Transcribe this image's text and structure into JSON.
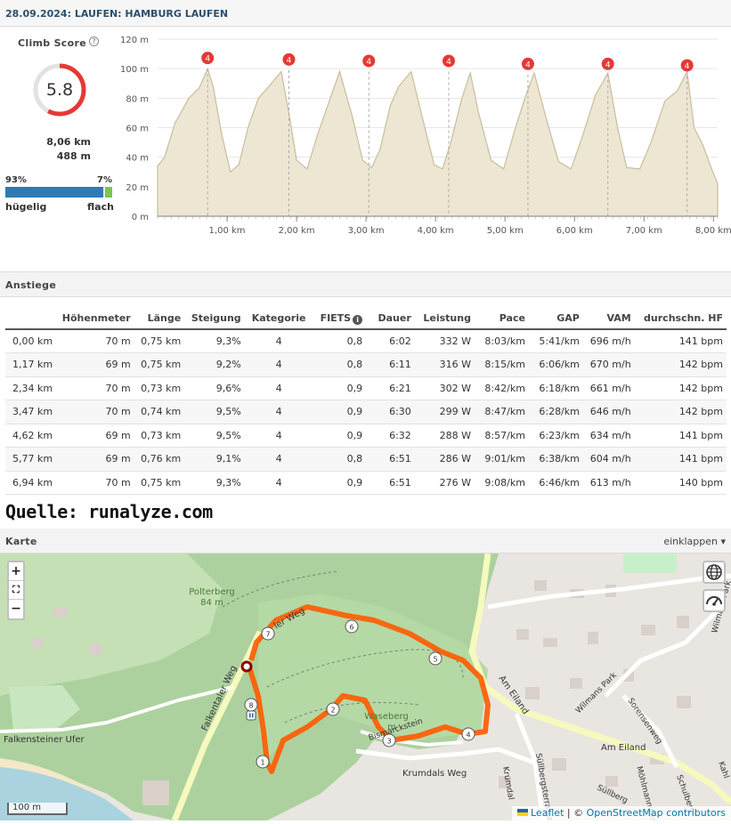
{
  "header": {
    "title": "28.09.2024: LAUFEN: HAMBURG LAUFEN"
  },
  "climb_score": {
    "label": "Climb Score",
    "help_icon": "?",
    "value": "5.8",
    "distance": "8,06 km",
    "elevation": "488 m",
    "hilly_pct": "93%",
    "flat_pct": "7%",
    "hilly_fraction": 0.93,
    "hilly_label": "hügelig",
    "flat_label": "flach",
    "colors": {
      "ring": "#e53935",
      "hilly": "#2d7bb5",
      "flat": "#7ec44f"
    }
  },
  "chart_data": {
    "type": "area",
    "title": "",
    "xlabel": "",
    "ylabel": "",
    "x_ticks": [
      "1,00 km",
      "2,00 km",
      "3,00 km",
      "4,00 km",
      "5,00 km",
      "6,00 km",
      "7,00 km",
      "8,00 km"
    ],
    "y_ticks": [
      "0 m",
      "20 m",
      "40 m",
      "60 m",
      "80 m",
      "100 m",
      "120 m"
    ],
    "xlim": [
      0,
      8.06
    ],
    "ylim": [
      0,
      120
    ],
    "series": [
      {
        "x": [
          0,
          0.1,
          0.25,
          0.45,
          0.6,
          0.72,
          0.8,
          0.92,
          1.05,
          1.17,
          1.3,
          1.45,
          1.62,
          1.78,
          1.9,
          2.0,
          2.15,
          2.3,
          2.5,
          2.62,
          2.8,
          2.95,
          3.08,
          3.2,
          3.35,
          3.47,
          3.65,
          3.82,
          3.98,
          4.1,
          4.22,
          4.38,
          4.5,
          4.62,
          4.8,
          4.98,
          5.15,
          5.3,
          5.42,
          5.6,
          5.77,
          5.95,
          6.12,
          6.3,
          6.48,
          6.62,
          6.75,
          6.94,
          7.1,
          7.3,
          7.48,
          7.62,
          7.72,
          7.85,
          7.95,
          8.06
        ],
        "values": [
          34,
          40,
          63,
          80,
          87,
          100,
          88,
          56,
          30,
          35,
          60,
          80,
          89,
          98,
          67,
          38,
          32,
          55,
          82,
          98,
          68,
          38,
          33,
          45,
          75,
          88,
          98,
          65,
          35,
          32,
          50,
          80,
          97,
          70,
          38,
          32,
          60,
          82,
          97,
          65,
          37,
          32,
          55,
          82,
          97,
          60,
          33,
          32,
          50,
          78,
          85,
          98,
          60,
          48,
          35,
          22
        ]
      }
    ],
    "markers": [
      {
        "x": 0.72,
        "y": 100,
        "label": "4"
      },
      {
        "x": 1.89,
        "y": 99,
        "label": "4"
      },
      {
        "x": 3.04,
        "y": 98,
        "label": "4"
      },
      {
        "x": 4.19,
        "y": 98,
        "label": "4"
      },
      {
        "x": 5.33,
        "y": 96,
        "label": "4"
      },
      {
        "x": 6.48,
        "y": 96,
        "label": "4"
      },
      {
        "x": 7.62,
        "y": 95,
        "label": "4"
      }
    ],
    "grid": true,
    "colors": {
      "fill": "#ede6d3",
      "stroke": "#c9bd9c",
      "marker": "#e53935"
    }
  },
  "climbs_section": {
    "label": "Anstiege",
    "fiets_icon": "i",
    "columns": [
      "",
      "Höhenmeter",
      "Länge",
      "Steigung",
      "Kategorie",
      "FIETS",
      "Dauer",
      "Leistung",
      "Pace",
      "GAP",
      "VAM",
      "durchschn. HF"
    ],
    "rows": [
      [
        "0,00 km",
        "70 m",
        "0,75 km",
        "9,3%",
        "4",
        "0,8",
        "6:02",
        "332 W",
        "8:03/km",
        "5:41/km",
        "696 m/h",
        "141 bpm"
      ],
      [
        "1,17 km",
        "69 m",
        "0,75 km",
        "9,2%",
        "4",
        "0,8",
        "6:11",
        "316 W",
        "8:15/km",
        "6:06/km",
        "670 m/h",
        "142 bpm"
      ],
      [
        "2,34 km",
        "70 m",
        "0,73 km",
        "9,6%",
        "4",
        "0,9",
        "6:21",
        "302 W",
        "8:42/km",
        "6:18/km",
        "661 m/h",
        "142 bpm"
      ],
      [
        "3,47 km",
        "70 m",
        "0,74 km",
        "9,5%",
        "4",
        "0,9",
        "6:30",
        "299 W",
        "8:47/km",
        "6:28/km",
        "646 m/h",
        "142 bpm"
      ],
      [
        "4,62 km",
        "69 m",
        "0,73 km",
        "9,5%",
        "4",
        "0,9",
        "6:32",
        "288 W",
        "8:57/km",
        "6:23/km",
        "634 m/h",
        "141 bpm"
      ],
      [
        "5,77 km",
        "69 m",
        "0,76 km",
        "9,1%",
        "4",
        "0,8",
        "6:51",
        "286 W",
        "9:01/km",
        "6:38/km",
        "604 m/h",
        "141 bpm"
      ],
      [
        "6,94 km",
        "70 m",
        "0,75 km",
        "9,3%",
        "4",
        "0,9",
        "6:51",
        "276 W",
        "9:08/km",
        "6:46/km",
        "613 m/h",
        "140 bpm"
      ]
    ]
  },
  "source_text": "Quelle: runalyze.com",
  "map_section": {
    "label": "Karte",
    "toggle_label": "einklappen ▾",
    "zoom_in": "+",
    "fullscreen": "⛶",
    "zoom_out": "−",
    "scale": "100 m",
    "attribution_leaflet": "Leaflet",
    "attribution_sep": " | © ",
    "attribution_osm": "OpenStreetMap contributors",
    "labels": {
      "polterberg": "Polterberg",
      "polterberg_height": "84 m",
      "waseberg": "Waseberg",
      "waseberg_height": "m",
      "falkentaler_weg": "Falkentaler Weg",
      "falkenteiner_ufer": "Falkensteiner Ufer",
      "krumdals_weg": "Krumdals Weg",
      "krumdal": "Krumdal",
      "bismarckstein": "Bismarckstein",
      "am_eiland": "Am Eiland",
      "am_eiland_2": "Am Eiland",
      "wilmans_park": "Wilmans Park",
      "wilmans_park_2": "Wilmans Park",
      "sorensenweg": "Sorensenweg",
      "suellbergsterrasse": "Süllbergsterrasse",
      "suellberg": "Süllberg",
      "moehlmannweg": "Möhlmannweg",
      "schulberg": "Schulberg",
      "kahl": "Kahl",
      "upper_weg": "ler Weg"
    },
    "route_markers": [
      "1",
      "2",
      "3",
      "4",
      "5",
      "6",
      "7",
      "8"
    ]
  }
}
